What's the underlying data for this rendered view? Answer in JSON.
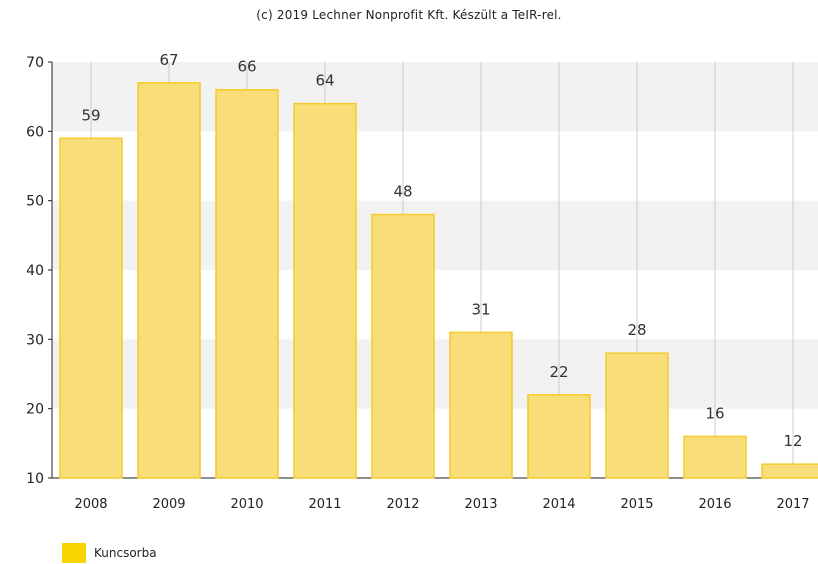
{
  "copyright": "(c) 2019 Lechner Nonprofit Kft. Készült a TeIR-rel.",
  "colors": {
    "bar_fill": "#f8dd78",
    "bar_stroke": "#f3cc2f",
    "legend_swatch": "#f9d500",
    "band": "#f2f2f2",
    "grid": "#cccccc",
    "axis": "#222222"
  },
  "chart_data": {
    "type": "bar",
    "title": "",
    "xlabel": "",
    "ylabel": "",
    "categories": [
      "2008",
      "2009",
      "2010",
      "2011",
      "2012",
      "2013",
      "2014",
      "2015",
      "2016",
      "2017"
    ],
    "series": [
      {
        "name": "Kuncsorba",
        "values": [
          59,
          67,
          66,
          64,
          48,
          31,
          22,
          28,
          16,
          12
        ]
      }
    ],
    "ylim": [
      10,
      70
    ],
    "yticks": [
      10,
      20,
      30,
      40,
      50,
      60,
      70
    ],
    "data_labels": true,
    "grid": true,
    "legend_position": "bottom-left"
  }
}
